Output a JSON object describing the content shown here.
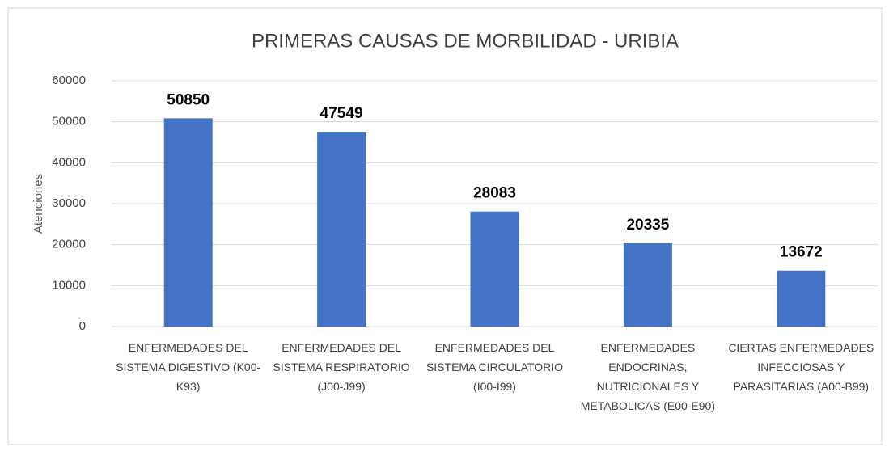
{
  "chart_data": {
    "type": "bar",
    "title": "PRIMERAS CAUSAS DE MORBILIDAD - URIBIA",
    "y_label": "Atenciones",
    "categories": [
      "ENFERMEDADES DEL SISTEMA DIGESTIVO (K00-K93)",
      "ENFERMEDADES DEL SISTEMA RESPIRATORIO (J00-J99)",
      "ENFERMEDADES DEL SISTEMA CIRCULATORIO (I00-I99)",
      "ENFERMEDADES ENDOCRINAS, NUTRICIONALES Y METABOLICAS (E00-E90)",
      "CIERTAS ENFERMEDADES INFECCIOSAS Y PARASITARIAS (A00-B99)"
    ],
    "values": [
      50850,
      47549,
      28083,
      20335,
      13672
    ],
    "color": "#4472c4",
    "ylim": [
      0,
      60000
    ],
    "yticks": [
      0,
      10000,
      20000,
      30000,
      40000,
      50000,
      60000
    ],
    "grid": true
  }
}
